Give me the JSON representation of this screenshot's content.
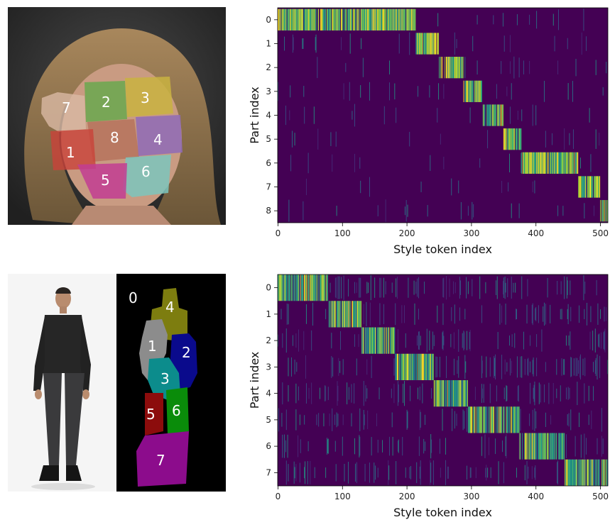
{
  "top_figure": {
    "segment_labels": [
      "7",
      "2",
      "3",
      "8",
      "4",
      "1",
      "6",
      "5"
    ]
  },
  "bottom_figure": {
    "segment_labels": [
      "0",
      "4",
      "1",
      "2",
      "3",
      "5",
      "6",
      "7"
    ]
  },
  "chart_data": [
    {
      "type": "heatmap",
      "title": "",
      "xlabel": "Style token index",
      "ylabel": "Part index",
      "x_ticks": [
        0,
        100,
        200,
        300,
        400,
        500
      ],
      "y_ticks": [
        "0",
        "1",
        "2",
        "3",
        "4",
        "5",
        "6",
        "7",
        "8"
      ],
      "xlim": [
        0,
        511
      ],
      "parts": 9,
      "tokens": 512,
      "colormap": "viridis",
      "dominant_token_ranges": [
        {
          "part": 0,
          "start": 0,
          "end": 214
        },
        {
          "part": 1,
          "start": 214,
          "end": 250
        },
        {
          "part": 2,
          "start": 250,
          "end": 288
        },
        {
          "part": 3,
          "start": 288,
          "end": 318
        },
        {
          "part": 4,
          "start": 318,
          "end": 350
        },
        {
          "part": 5,
          "start": 350,
          "end": 378
        },
        {
          "part": 6,
          "start": 378,
          "end": 466
        },
        {
          "part": 7,
          "start": 466,
          "end": 500
        },
        {
          "part": 8,
          "start": 500,
          "end": 512
        }
      ]
    },
    {
      "type": "heatmap",
      "title": "",
      "xlabel": "Style token index",
      "ylabel": "Part index",
      "x_ticks": [
        0,
        100,
        200,
        300,
        400,
        500
      ],
      "y_ticks": [
        "0",
        "1",
        "2",
        "3",
        "4",
        "5",
        "6",
        "7"
      ],
      "xlim": [
        0,
        511
      ],
      "parts": 8,
      "tokens": 512,
      "colormap": "viridis",
      "dominant_token_ranges": [
        {
          "part": 0,
          "start": 0,
          "end": 78
        },
        {
          "part": 1,
          "start": 78,
          "end": 130
        },
        {
          "part": 2,
          "start": 130,
          "end": 182
        },
        {
          "part": 3,
          "start": 182,
          "end": 242
        },
        {
          "part": 4,
          "start": 242,
          "end": 295
        },
        {
          "part": 5,
          "start": 295,
          "end": 375
        },
        {
          "part": 6,
          "start": 375,
          "end": 445
        },
        {
          "part": 7,
          "start": 445,
          "end": 512
        }
      ]
    }
  ],
  "colors": {
    "background": "#440154",
    "low": "#3b528b",
    "mid": "#21918c",
    "high": "#5ec962",
    "peak": "#fde725"
  }
}
